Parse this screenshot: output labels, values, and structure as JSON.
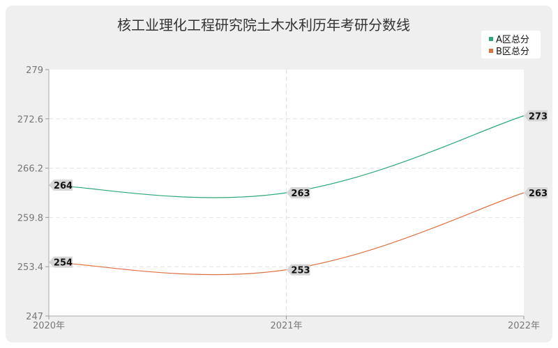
{
  "chart_data": {
    "type": "line",
    "title": "核工业理化工程研究院土木水利历年考研分数线",
    "xlabel": "",
    "ylabel": "",
    "categories": [
      "2020年",
      "2021年",
      "2022年"
    ],
    "ylim": [
      247,
      279
    ],
    "yticks": [
      "279",
      "272.6",
      "266.2",
      "259.8",
      "253.4",
      "247"
    ],
    "grid": true,
    "legend_position": "top-right",
    "series": [
      {
        "name": "A区总分",
        "values": [
          264,
          263,
          273
        ],
        "color": "#2aa876"
      },
      {
        "name": "B区总分",
        "values": [
          254,
          253,
          263
        ],
        "color": "#e07040"
      }
    ]
  }
}
